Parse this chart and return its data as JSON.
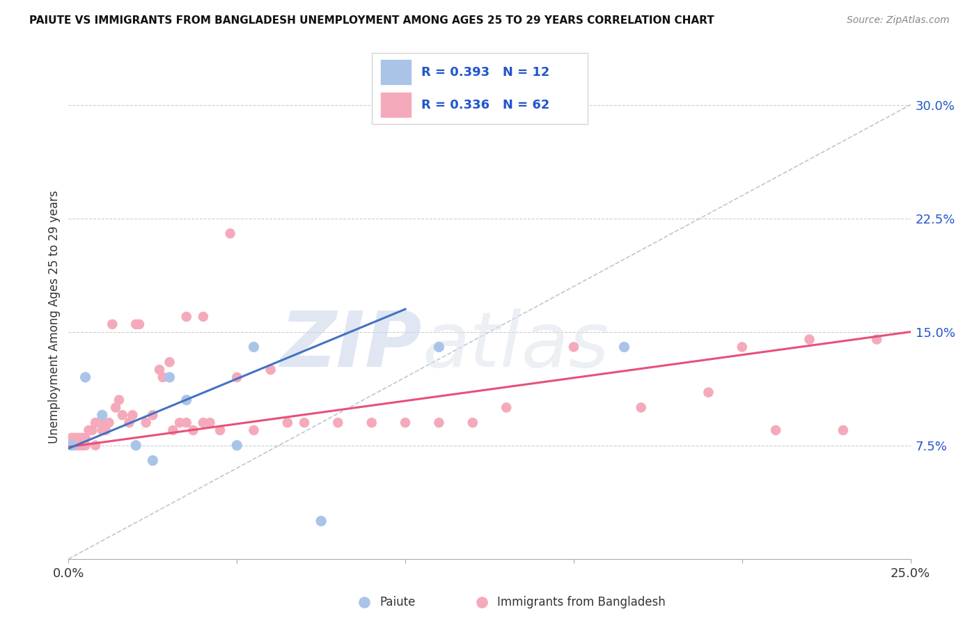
{
  "title": "PAIUTE VS IMMIGRANTS FROM BANGLADESH UNEMPLOYMENT AMONG AGES 25 TO 29 YEARS CORRELATION CHART",
  "source": "Source: ZipAtlas.com",
  "ylabel": "Unemployment Among Ages 25 to 29 years",
  "xlim": [
    0.0,
    0.25
  ],
  "ylim": [
    0.0,
    0.32
  ],
  "yticks": [
    0.075,
    0.15,
    0.225,
    0.3
  ],
  "ytick_labels": [
    "7.5%",
    "15.0%",
    "22.5%",
    "30.0%"
  ],
  "paiute_R": 0.393,
  "paiute_N": 12,
  "bangladesh_R": 0.336,
  "bangladesh_N": 62,
  "paiute_color": "#aac4e8",
  "paiute_line_color": "#4472c4",
  "bangladesh_color": "#f4aaba",
  "bangladesh_line_color": "#e8507a",
  "diagonal_color": "#b8c8d8",
  "legend_text_color": "#2255cc",
  "paiute_x": [
    0.001,
    0.005,
    0.01,
    0.02,
    0.025,
    0.03,
    0.035,
    0.05,
    0.055,
    0.075,
    0.11,
    0.165
  ],
  "paiute_y": [
    0.075,
    0.12,
    0.095,
    0.075,
    0.065,
    0.12,
    0.105,
    0.075,
    0.14,
    0.025,
    0.14,
    0.14
  ],
  "bangladesh_x": [
    0.001,
    0.001,
    0.001,
    0.002,
    0.002,
    0.003,
    0.003,
    0.004,
    0.004,
    0.005,
    0.005,
    0.006,
    0.007,
    0.008,
    0.008,
    0.009,
    0.01,
    0.01,
    0.011,
    0.012,
    0.013,
    0.014,
    0.015,
    0.016,
    0.018,
    0.019,
    0.02,
    0.021,
    0.023,
    0.025,
    0.027,
    0.028,
    0.03,
    0.031,
    0.033,
    0.035,
    0.037,
    0.04,
    0.042,
    0.045,
    0.048,
    0.05,
    0.055,
    0.06,
    0.065,
    0.07,
    0.08,
    0.09,
    0.1,
    0.11,
    0.12,
    0.13,
    0.15,
    0.17,
    0.19,
    0.2,
    0.21,
    0.22,
    0.23,
    0.24,
    0.035,
    0.04
  ],
  "bangladesh_y": [
    0.075,
    0.08,
    0.075,
    0.08,
    0.075,
    0.075,
    0.08,
    0.08,
    0.075,
    0.075,
    0.08,
    0.085,
    0.085,
    0.09,
    0.075,
    0.09,
    0.09,
    0.085,
    0.085,
    0.09,
    0.155,
    0.1,
    0.105,
    0.095,
    0.09,
    0.095,
    0.155,
    0.155,
    0.09,
    0.095,
    0.125,
    0.12,
    0.13,
    0.085,
    0.09,
    0.09,
    0.085,
    0.09,
    0.09,
    0.085,
    0.215,
    0.12,
    0.085,
    0.125,
    0.09,
    0.09,
    0.09,
    0.09,
    0.09,
    0.09,
    0.09,
    0.1,
    0.14,
    0.1,
    0.11,
    0.14,
    0.085,
    0.145,
    0.085,
    0.145,
    0.16,
    0.16
  ],
  "watermark_zip": "ZIP",
  "watermark_atlas": "atlas",
  "background_color": "#ffffff",
  "grid_color": "#cccccc"
}
